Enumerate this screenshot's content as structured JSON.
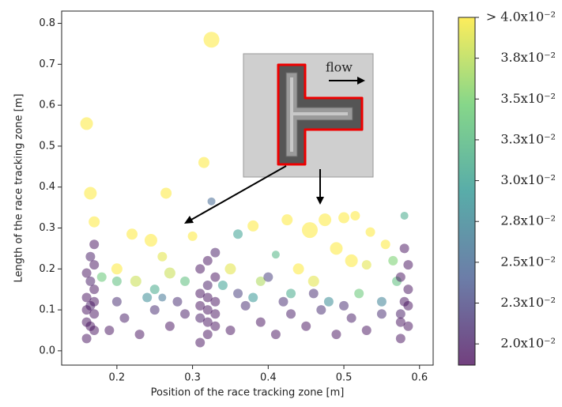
{
  "chart_data": {
    "type": "scatter",
    "xlabel": "Position of the race tracking zone [m]",
    "ylabel": "Length of the race tracking zone [m]",
    "inset_label": "flow",
    "xlim": [
      0.127,
      0.618
    ],
    "ylim": [
      -0.035,
      0.83
    ],
    "xticks": [
      0.2,
      0.3,
      0.4,
      0.5,
      0.6
    ],
    "yticks": [
      {
        "value": 0,
        "label": "0.0"
      },
      0.1,
      0.2,
      0.3,
      0.4,
      0.5,
      0.6,
      0.7,
      0.8
    ],
    "clim": [
      0.0187,
      0.04
    ],
    "cticks": [
      {
        "value": 0.02,
        "label": "2.0x10⁻²"
      },
      {
        "value": 0.0225,
        "label": "2.3x10⁻²"
      },
      {
        "value": 0.025,
        "label": "2.5x10⁻²"
      },
      {
        "value": 0.0275,
        "label": "2.8x10⁻²"
      },
      {
        "value": 0.03,
        "label": "3.0x10⁻²"
      },
      {
        "value": 0.0325,
        "label": "3.3x10⁻²"
      },
      {
        "value": 0.035,
        "label": "3.5x10⁻²"
      },
      {
        "value": 0.0375,
        "label": "3.8x10⁻²"
      },
      {
        "value": 0.04,
        "label": "> 4.0x10⁻²"
      }
    ],
    "colormap": [
      "#440154",
      "#3b528b",
      "#21918c",
      "#5ec962",
      "#fde725"
    ],
    "x": [
      0.325,
      0.16,
      0.165,
      0.265,
      0.315,
      0.455,
      0.475,
      0.5,
      0.515,
      0.17,
      0.22,
      0.245,
      0.38,
      0.425,
      0.535,
      0.555,
      0.3,
      0.49,
      0.51,
      0.2,
      0.26,
      0.27,
      0.35,
      0.44,
      0.53,
      0.225,
      0.46,
      0.39,
      0.58,
      0.325,
      0.36,
      0.41,
      0.565,
      0.2,
      0.18,
      0.25,
      0.29,
      0.34,
      0.43,
      0.52,
      0.57,
      0.24,
      0.38,
      0.48,
      0.26,
      0.55,
      0.16,
      0.17,
      0.16,
      0.17,
      0.165,
      0.16,
      0.17,
      0.165,
      0.16,
      0.17,
      0.165,
      0.17,
      0.16,
      0.17,
      0.165,
      0.31,
      0.32,
      0.33,
      0.31,
      0.32,
      0.33,
      0.31,
      0.32,
      0.33,
      0.31,
      0.32,
      0.33,
      0.32,
      0.33,
      0.31,
      0.32,
      0.575,
      0.585,
      0.575,
      0.58,
      0.585,
      0.575,
      0.585,
      0.58,
      0.575,
      0.585,
      0.19,
      0.21,
      0.23,
      0.25,
      0.27,
      0.29,
      0.35,
      0.37,
      0.39,
      0.41,
      0.43,
      0.45,
      0.47,
      0.49,
      0.51,
      0.53,
      0.55,
      0.2,
      0.28,
      0.36,
      0.42,
      0.5,
      0.4,
      0.46
    ],
    "values": [
      0.76,
      0.555,
      0.385,
      0.385,
      0.46,
      0.295,
      0.32,
      0.325,
      0.33,
      0.315,
      0.285,
      0.27,
      0.305,
      0.32,
      0.29,
      0.26,
      0.28,
      0.25,
      0.22,
      0.2,
      0.23,
      0.19,
      0.2,
      0.2,
      0.21,
      0.17,
      0.17,
      0.17,
      0.33,
      0.365,
      0.285,
      0.235,
      0.22,
      0.17,
      0.18,
      0.15,
      0.17,
      0.16,
      0.14,
      0.14,
      0.17,
      0.13,
      0.13,
      0.12,
      0.13,
      0.12,
      0.03,
      0.05,
      0.07,
      0.09,
      0.11,
      0.13,
      0.15,
      0.17,
      0.19,
      0.21,
      0.23,
      0.26,
      0.1,
      0.12,
      0.06,
      0.02,
      0.04,
      0.06,
      0.08,
      0.1,
      0.12,
      0.14,
      0.16,
      0.18,
      0.2,
      0.22,
      0.24,
      0.07,
      0.09,
      0.11,
      0.13,
      0.03,
      0.06,
      0.09,
      0.12,
      0.15,
      0.18,
      0.21,
      0.25,
      0.07,
      0.11,
      0.05,
      0.08,
      0.04,
      0.1,
      0.06,
      0.09,
      0.05,
      0.11,
      0.07,
      0.04,
      0.09,
      0.06,
      0.1,
      0.04,
      0.08,
      0.05,
      0.09,
      0.12,
      0.12,
      0.14,
      0.12,
      0.11,
      0.18,
      0.14
    ],
    "sizes": [
      10,
      8,
      8,
      7,
      7,
      10,
      8,
      7,
      6,
      7,
      7,
      8,
      7,
      7,
      6,
      6,
      6,
      8,
      8,
      7,
      6,
      7,
      7,
      7,
      6,
      7,
      7,
      6,
      5,
      5,
      6,
      5,
      6,
      6,
      6,
      6,
      6,
      6,
      6,
      6,
      6,
      6,
      6,
      6,
      5,
      6,
      6,
      6,
      6,
      6,
      6,
      6,
      6,
      6,
      6,
      6,
      6,
      6,
      6,
      6,
      6,
      6,
      6,
      6,
      6,
      6,
      6,
      6,
      6,
      6,
      6,
      6,
      6,
      6,
      6,
      6,
      6,
      6,
      6,
      6,
      6,
      6,
      6,
      6,
      6,
      6,
      6,
      6,
      6,
      6,
      6,
      6,
      6,
      6,
      6,
      6,
      6,
      6,
      6,
      6,
      6,
      6,
      6,
      6,
      6,
      6,
      6,
      6,
      6,
      6,
      6
    ],
    "colors": [
      0.04,
      0.04,
      0.04,
      0.04,
      0.04,
      0.04,
      0.04,
      0.04,
      0.04,
      0.04,
      0.04,
      0.04,
      0.04,
      0.04,
      0.04,
      0.04,
      0.04,
      0.04,
      0.04,
      0.04,
      0.039,
      0.038,
      0.039,
      0.04,
      0.039,
      0.038,
      0.039,
      0.037,
      0.031,
      0.025,
      0.03,
      0.032,
      0.035,
      0.033,
      0.034,
      0.031,
      0.033,
      0.03,
      0.031,
      0.034,
      0.033,
      0.028,
      0.029,
      0.028,
      0.026,
      0.027,
      0.0195,
      0.0195,
      0.0195,
      0.0195,
      0.02,
      0.0195,
      0.0195,
      0.02,
      0.0195,
      0.0195,
      0.02,
      0.0195,
      0.0195,
      0.0195,
      0.0195,
      0.0195,
      0.0195,
      0.0195,
      0.02,
      0.0195,
      0.0195,
      0.0195,
      0.02,
      0.0195,
      0.0195,
      0.0195,
      0.02,
      0.0195,
      0.0195,
      0.0195,
      0.0195,
      0.0195,
      0.0195,
      0.02,
      0.0195,
      0.0195,
      0.0195,
      0.0195,
      0.0195,
      0.0195,
      0.0195,
      0.0195,
      0.02,
      0.0195,
      0.021,
      0.0195,
      0.02,
      0.0195,
      0.021,
      0.0195,
      0.0195,
      0.02,
      0.0195,
      0.021,
      0.0195,
      0.02,
      0.0195,
      0.021,
      0.021,
      0.021,
      0.022,
      0.021,
      0.021,
      0.022,
      0.021
    ]
  }
}
